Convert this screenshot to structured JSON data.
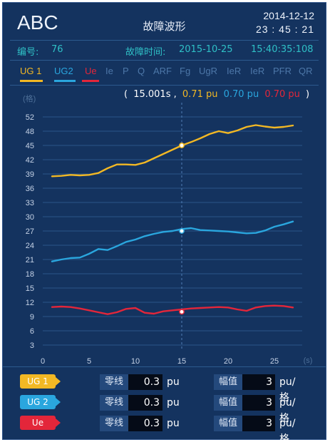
{
  "header": {
    "app_name": "ABC",
    "title": "故障波形",
    "date": "2014-12-12",
    "time": "23 : 45 : 21"
  },
  "info": {
    "number_label": "编号:",
    "number_value": "76",
    "fault_time_label": "故障时间:",
    "fault_date": "2015-10-25",
    "fault_time": "15:40:35:108"
  },
  "tabs": [
    {
      "label": "UG 1",
      "active": true,
      "color": "#f2b824"
    },
    {
      "label": "UG2",
      "active": true,
      "color": "#2aa6de"
    },
    {
      "label": "Ue",
      "active": true,
      "color": "#e3263a"
    },
    {
      "label": "Ie",
      "active": false
    },
    {
      "label": "P",
      "active": false
    },
    {
      "label": "Q",
      "active": false
    },
    {
      "label": "ARF",
      "active": false
    },
    {
      "label": "Fg",
      "active": false
    },
    {
      "label": "UgR",
      "active": false
    },
    {
      "label": "IeR",
      "active": false
    },
    {
      "label": "IeR",
      "active": false
    },
    {
      "label": "PFR",
      "active": false
    },
    {
      "label": "QR",
      "active": false
    }
  ],
  "readout": {
    "open": "(",
    "time": "15.001s ,",
    "ug1": "0.71 pu",
    "ug2": "0.70 pu",
    "ue": "0.70 pu",
    "close": ")"
  },
  "colors": {
    "ug1": "#f2b824",
    "ug2": "#2aa6de",
    "ue": "#e3263a",
    "inactive_tab": "#4d77a8",
    "grid": "#2a5488"
  },
  "chart_data": {
    "type": "line",
    "ylabel": "(格)",
    "xlabel": "(s)",
    "y_ticks": [
      3,
      6,
      9,
      12,
      15,
      18,
      21,
      24,
      27,
      30,
      33,
      36,
      39,
      42,
      45,
      48,
      52
    ],
    "x_ticks": [
      0,
      5,
      10,
      15,
      20,
      25
    ],
    "xlim": [
      0,
      28
    ],
    "cursor_x": 15,
    "grid": true,
    "series": [
      {
        "name": "UG 1",
        "color": "#f2b824",
        "cursor_y": 45,
        "points": [
          [
            1,
            38.5
          ],
          [
            2,
            38.6
          ],
          [
            3,
            38.8
          ],
          [
            4,
            38.7
          ],
          [
            5,
            38.8
          ],
          [
            6,
            39.2
          ],
          [
            7,
            40.2
          ],
          [
            8,
            41.0
          ],
          [
            9,
            41.0
          ],
          [
            10,
            40.9
          ],
          [
            11,
            41.4
          ],
          [
            12,
            42.3
          ],
          [
            13,
            43.2
          ],
          [
            14,
            44.1
          ],
          [
            15,
            45.0
          ],
          [
            16,
            45.7
          ],
          [
            17,
            46.5
          ],
          [
            18,
            47.4
          ],
          [
            19,
            48.0
          ],
          [
            20,
            47.6
          ],
          [
            21,
            48.2
          ],
          [
            22,
            49.2
          ],
          [
            23,
            49.7
          ],
          [
            24,
            49.3
          ],
          [
            25,
            49.0
          ],
          [
            26,
            49.2
          ],
          [
            27,
            49.6
          ]
        ]
      },
      {
        "name": "UG 2",
        "color": "#2aa6de",
        "cursor_y": 27,
        "points": [
          [
            1,
            20.6
          ],
          [
            2,
            21.0
          ],
          [
            3,
            21.3
          ],
          [
            4,
            21.4
          ],
          [
            5,
            22.2
          ],
          [
            6,
            23.2
          ],
          [
            7,
            23.0
          ],
          [
            8,
            23.8
          ],
          [
            9,
            24.7
          ],
          [
            10,
            25.2
          ],
          [
            11,
            25.9
          ],
          [
            12,
            26.4
          ],
          [
            13,
            26.8
          ],
          [
            14,
            27.0
          ],
          [
            15,
            27.4
          ],
          [
            16,
            27.6
          ],
          [
            17,
            27.2
          ],
          [
            18,
            27.1
          ],
          [
            19,
            27.0
          ],
          [
            20,
            26.9
          ],
          [
            21,
            26.7
          ],
          [
            22,
            26.5
          ],
          [
            23,
            26.6
          ],
          [
            24,
            27.1
          ],
          [
            25,
            27.9
          ],
          [
            26,
            28.4
          ],
          [
            27,
            29.0
          ]
        ]
      },
      {
        "name": "Ue",
        "color": "#e3263a",
        "cursor_y": 10,
        "points": [
          [
            1,
            11.0
          ],
          [
            2,
            11.1
          ],
          [
            3,
            11.0
          ],
          [
            4,
            10.7
          ],
          [
            5,
            10.3
          ],
          [
            6,
            9.9
          ],
          [
            7,
            9.5
          ],
          [
            8,
            9.9
          ],
          [
            9,
            10.6
          ],
          [
            10,
            10.8
          ],
          [
            11,
            9.8
          ],
          [
            12,
            9.6
          ],
          [
            13,
            10.1
          ],
          [
            14,
            10.3
          ],
          [
            15,
            10.5
          ],
          [
            16,
            10.7
          ],
          [
            17,
            10.8
          ],
          [
            18,
            10.9
          ],
          [
            19,
            11.0
          ],
          [
            20,
            10.9
          ],
          [
            21,
            10.5
          ],
          [
            22,
            10.2
          ],
          [
            23,
            10.9
          ],
          [
            24,
            11.2
          ],
          [
            25,
            11.3
          ],
          [
            26,
            11.2
          ],
          [
            27,
            10.9
          ]
        ]
      }
    ]
  },
  "bottom_rows": [
    {
      "tag": "UG 1",
      "color": "#f2b824",
      "zero_label": "零线",
      "zero_value": "0.3",
      "zero_unit": "pu",
      "amp_label": "幅值",
      "amp_value": "3",
      "amp_unit": "pu/格"
    },
    {
      "tag": "UG 2",
      "color": "#2aa6de",
      "zero_label": "零线",
      "zero_value": "0.3",
      "zero_unit": "pu",
      "amp_label": "幅值",
      "amp_value": "3",
      "amp_unit": "pu/格"
    },
    {
      "tag": "Ue",
      "color": "#e3263a",
      "zero_label": "零线",
      "zero_value": "0.3",
      "zero_unit": "pu",
      "amp_label": "幅值",
      "amp_value": "3",
      "amp_unit": "pu/格"
    }
  ]
}
